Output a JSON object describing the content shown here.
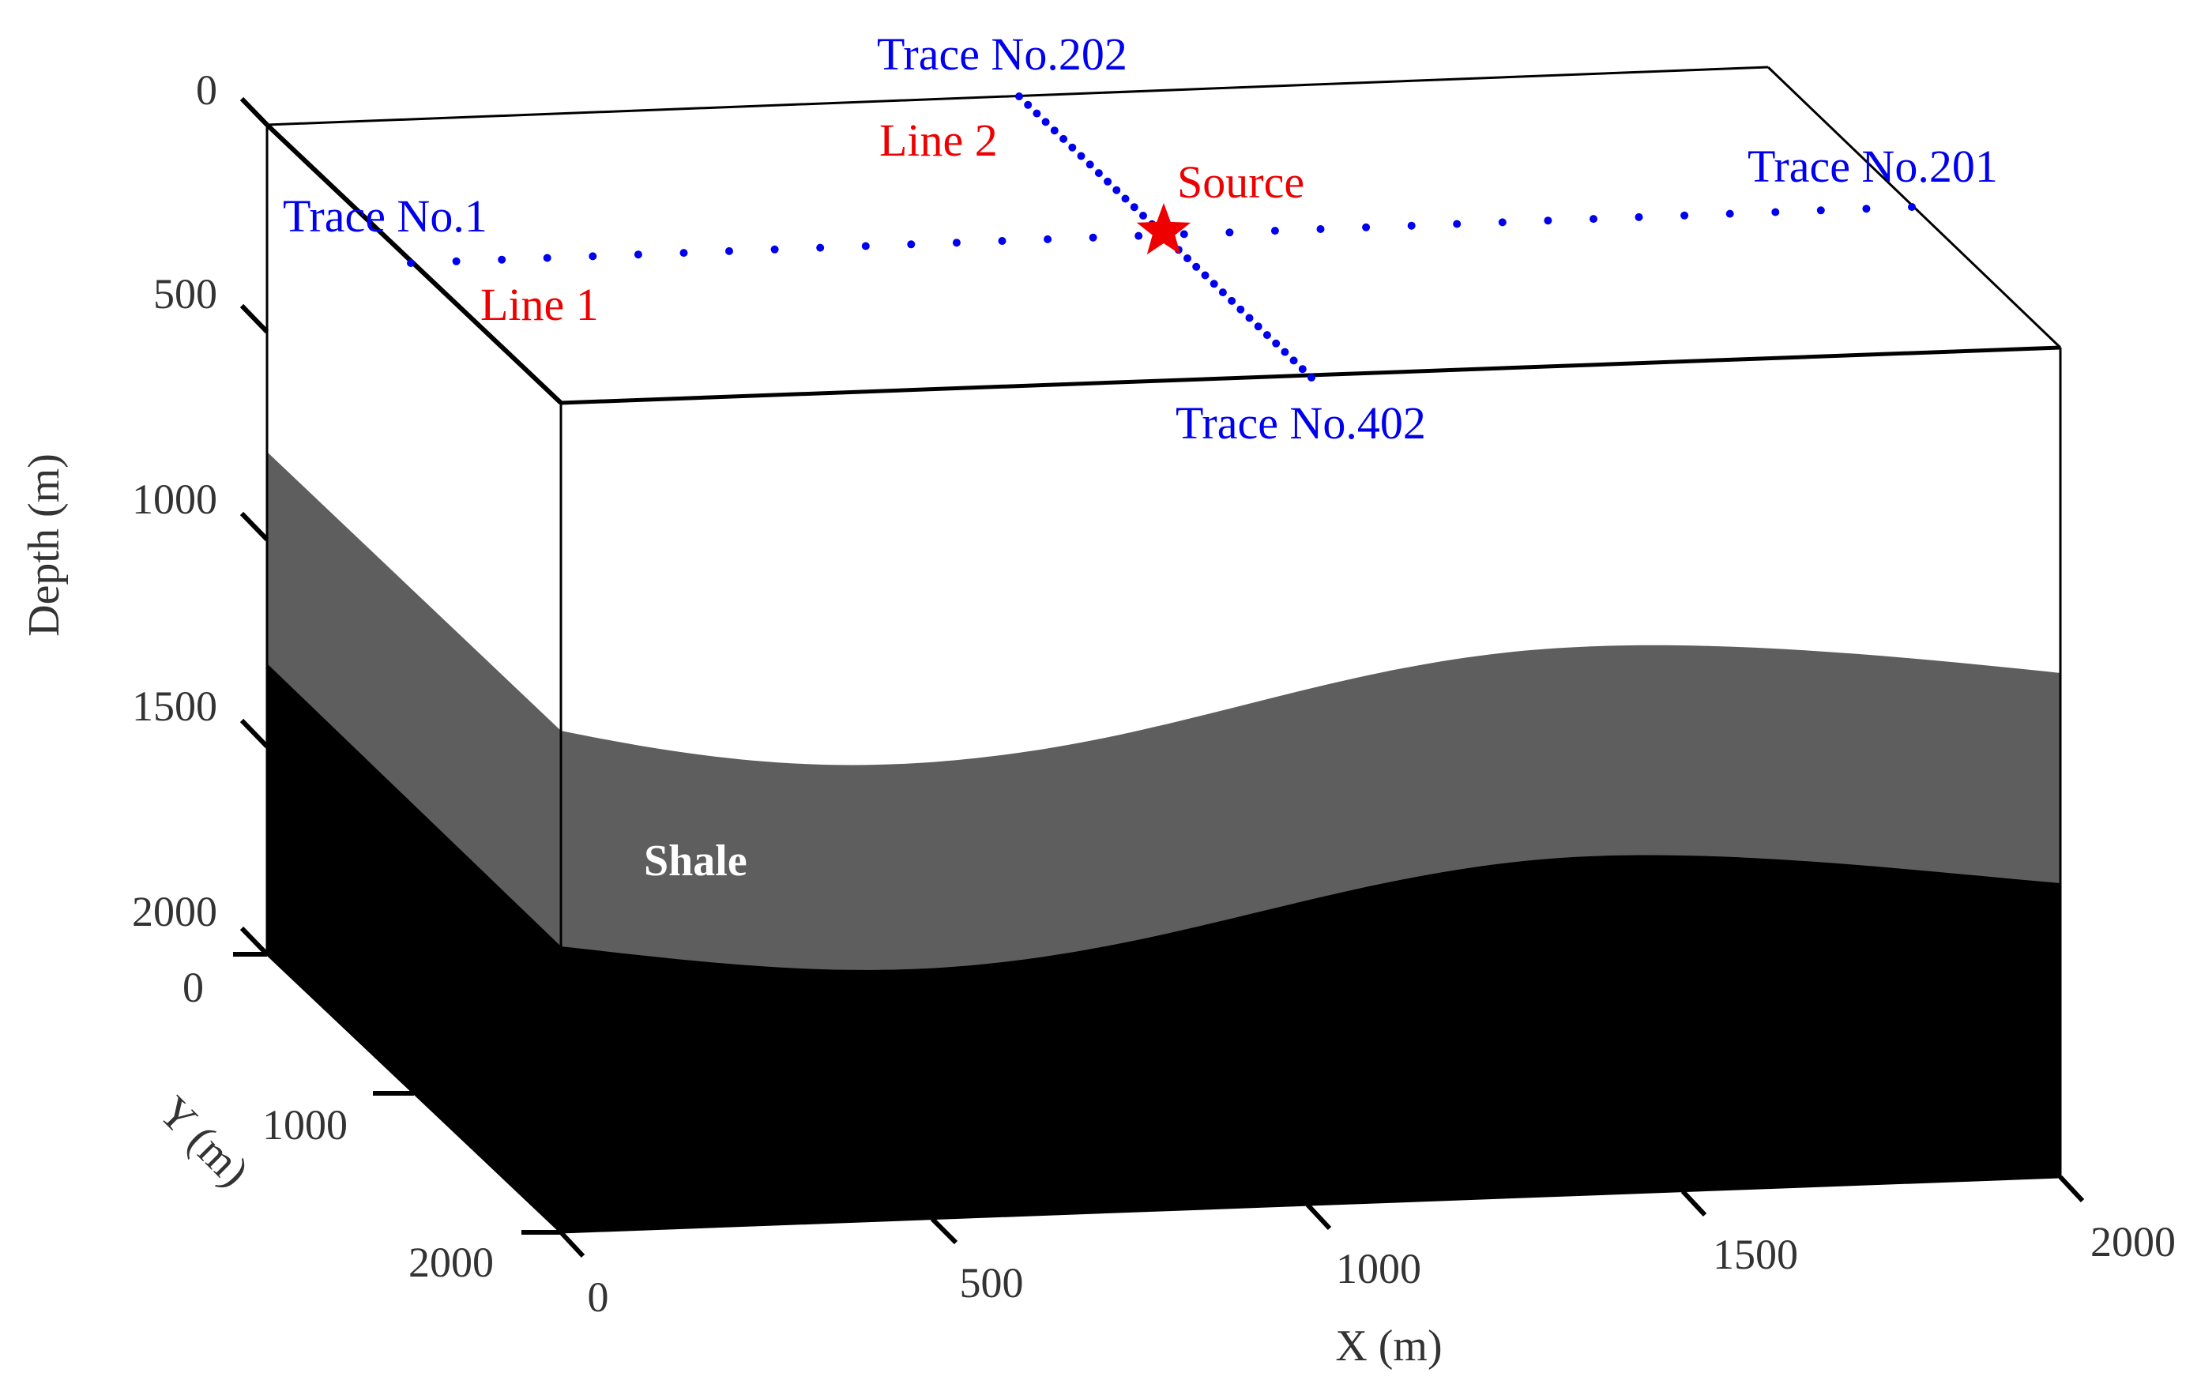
{
  "colors": {
    "background": "#ffffff",
    "shale": "#5e5e5e",
    "bottom_layer": "#000000",
    "trace_blue": "#0000ee",
    "annotation_red": "#ee0000",
    "axis": "#000000",
    "text_gray": "#333333"
  },
  "axes": {
    "depth": {
      "label": "Depth (m)",
      "ticks": [
        "0",
        "500",
        "1000",
        "1500",
        "2000"
      ]
    },
    "y": {
      "label": "Y (m)",
      "ticks": [
        "0",
        "1000",
        "2000"
      ]
    },
    "x": {
      "label": "X (m)",
      "ticks": [
        "0",
        "500",
        "1000",
        "1500",
        "2000"
      ]
    }
  },
  "annotations": {
    "trace1": "Trace No.1",
    "trace201": "Trace No.201",
    "trace202": "Trace No.202",
    "trace402": "Trace No.402",
    "line1": "Line 1",
    "line2": "Line 2",
    "source": "Source",
    "shale": "Shale"
  },
  "survey": {
    "line1_traces": {
      "first": 1,
      "last": 201
    },
    "line2_traces": {
      "first": 202,
      "last": 402
    },
    "dots_per_line": 34
  }
}
